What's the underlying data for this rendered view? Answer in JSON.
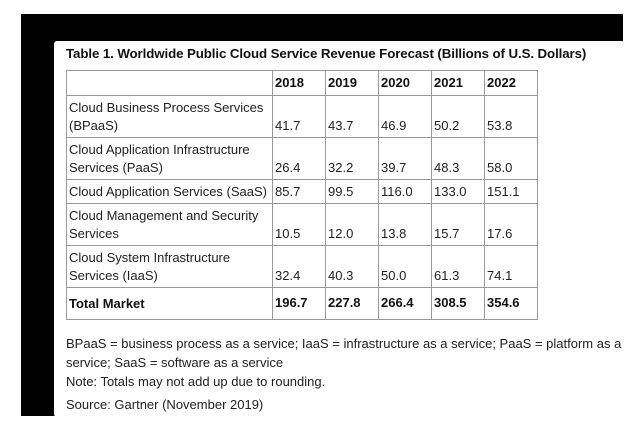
{
  "title": "Table 1. Worldwide Public Cloud Service Revenue Forecast (Billions of U.S. Dollars)",
  "headers": [
    "",
    "2018",
    "2019",
    "2020",
    "2021",
    "2022"
  ],
  "rows": [
    {
      "label": "Cloud Business Process Services (BPaaS)",
      "values": [
        "41.7",
        "43.7",
        "46.9",
        "50.2",
        "53.8"
      ]
    },
    {
      "label": "Cloud Application Infrastructure Services (PaaS)",
      "values": [
        "26.4",
        "32.2",
        "39.7",
        "48.3",
        "58.0"
      ]
    },
    {
      "label": "Cloud Application Services (SaaS)",
      "values": [
        "85.7",
        "99.5",
        "116.0",
        "133.0",
        "151.1"
      ]
    },
    {
      "label": "Cloud Management and Security Services",
      "values": [
        "10.5",
        "12.0",
        "13.8",
        "15.7",
        "17.6"
      ]
    },
    {
      "label": "Cloud System Infrastructure Services (IaaS)",
      "values": [
        "32.4",
        "40.3",
        "50.0",
        "61.3",
        "74.1"
      ]
    }
  ],
  "total": {
    "label": "Total Market",
    "values": [
      "196.7",
      "227.8",
      "266.4",
      "308.5",
      "354.6"
    ]
  },
  "notes": {
    "abbreviations": "BPaaS = business process as a service; IaaS = infrastructure as a service; PaaS = platform as a service; SaaS = software as a service",
    "rounding": "Note: Totals may not add up due to rounding."
  },
  "source": "Source: Gartner (November 2019)"
}
